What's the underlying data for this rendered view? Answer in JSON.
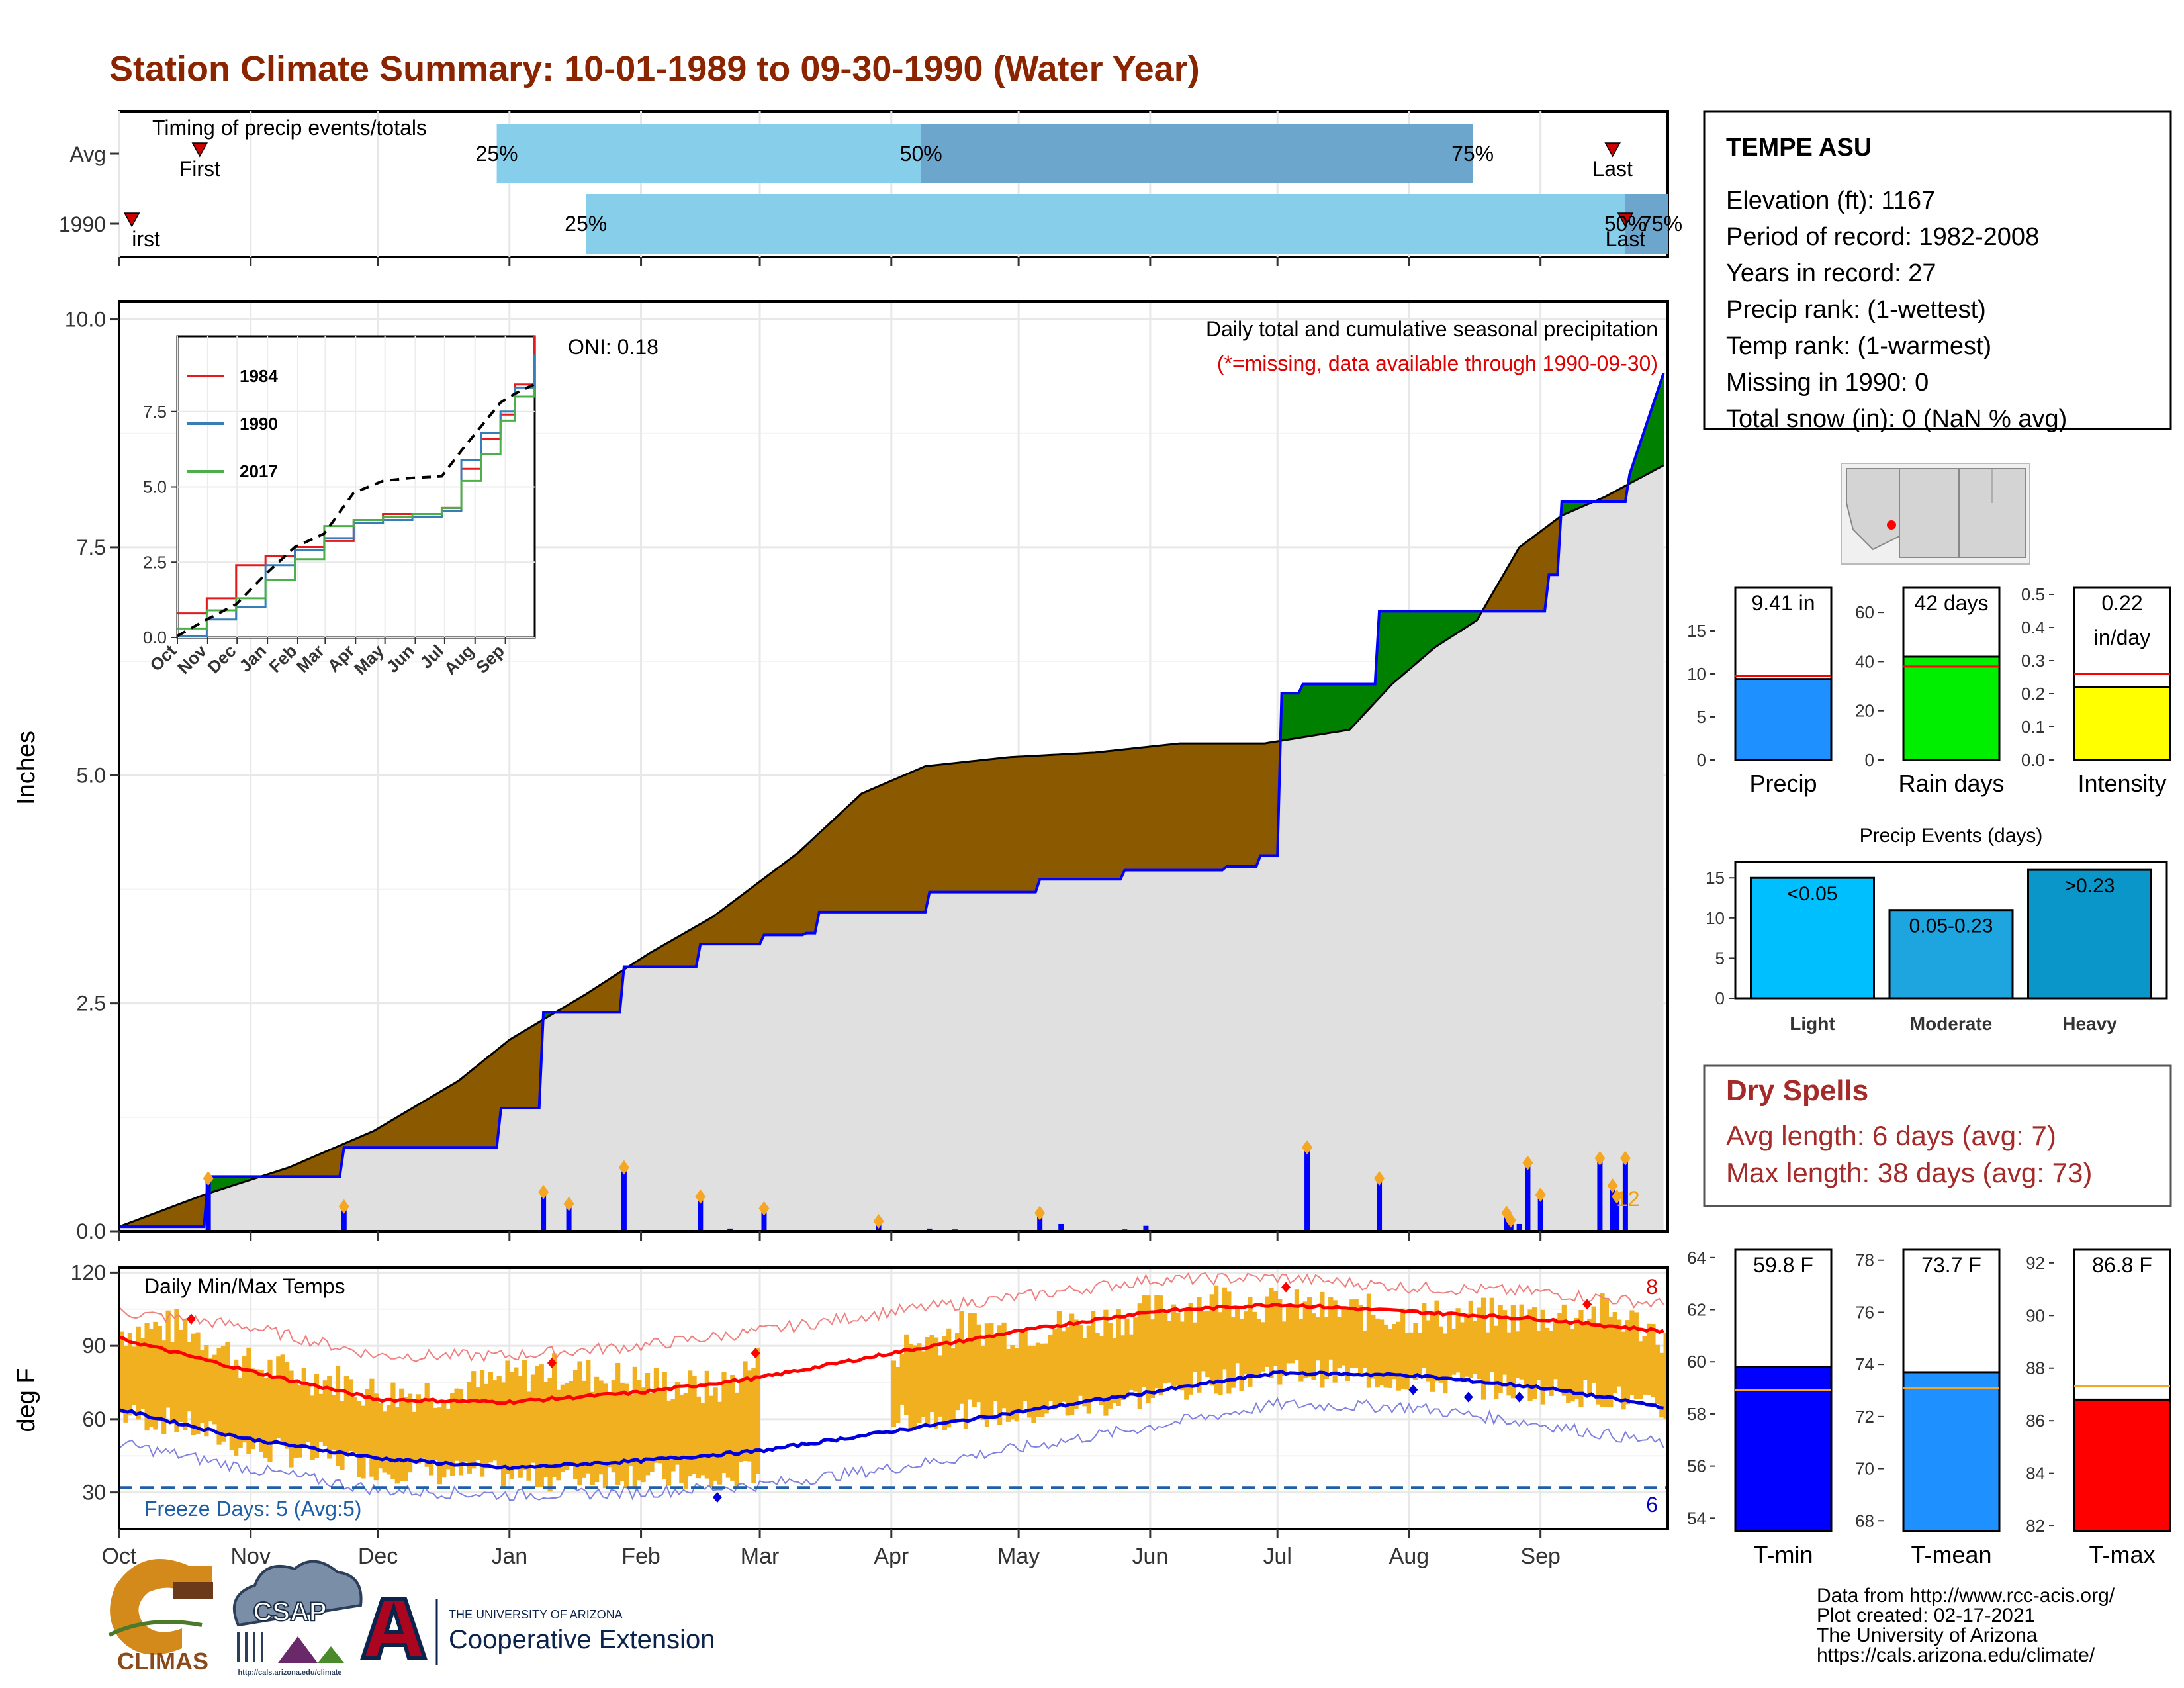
{
  "title": "Station Climate Summary: 10-01-1989 to 09-30-1990 (Water Year)",
  "timing": {
    "label": "Timing of precip events/totals",
    "rows": [
      {
        "name": "Avg",
        "first_day": 19,
        "last_day": 352,
        "p25_day": 89,
        "p50_day": 189,
        "p75_day": 319,
        "first_label": "First",
        "last_label": "Last",
        "p25_label": "25%",
        "p50_label": "50%",
        "p75_label": "75%"
      },
      {
        "name": "1990",
        "first_day": 3,
        "last_day": 355,
        "p25_day": 110,
        "p50_day": 355,
        "p75_day": 392,
        "first_label": "irst",
        "last_label": "Last",
        "p25_label": "25%",
        "p50_label": "50%",
        "p75_label": "75%"
      }
    ]
  },
  "precip_panel": {
    "ylabel": "Inches",
    "header": "Daily total and cumulative seasonal precipitation",
    "missing_note": "(*=missing, data available through 1990-09-30)",
    "oni": "ONI: 0.18",
    "corner_count": "12",
    "y_ticks": [
      "0.0",
      "2.5",
      "5.0",
      "7.5",
      "10.0"
    ]
  },
  "chart_data": [
    {
      "type": "area",
      "name": "cumulative precipitation",
      "xlabel": "",
      "ylabel": "Inches",
      "ylim": [
        0,
        10.2
      ],
      "x_unit": "day of water year (Oct 1 = 0)",
      "avg_cumulative": {
        "days": [
          0,
          20,
          40,
          60,
          80,
          92,
          110,
          125,
          140,
          160,
          175,
          190,
          210,
          230,
          250,
          270,
          290,
          300,
          310,
          320,
          330,
          340,
          350,
          364
        ],
        "values": [
          0.05,
          0.4,
          0.7,
          1.1,
          1.65,
          2.1,
          2.6,
          3.05,
          3.45,
          4.15,
          4.8,
          5.1,
          5.2,
          5.25,
          5.35,
          5.35,
          5.5,
          6.0,
          6.4,
          6.7,
          7.5,
          7.85,
          8.05,
          8.4
        ]
      },
      "observed_cumulative": {
        "days": [
          0,
          20,
          21,
          52,
          53,
          89,
          90,
          99,
          100,
          118,
          119,
          136,
          137,
          151,
          152,
          161,
          162,
          164,
          165,
          190,
          191,
          216,
          217,
          236,
          237,
          260,
          261,
          268,
          269,
          273,
          274,
          278,
          279,
          296,
          297,
          336,
          337,
          339,
          340,
          355,
          356,
          364
        ],
        "values": [
          0.05,
          0.05,
          0.6,
          0.6,
          0.92,
          0.92,
          1.35,
          1.35,
          2.4,
          2.4,
          2.9,
          2.9,
          3.15,
          3.15,
          3.25,
          3.25,
          3.27,
          3.27,
          3.5,
          3.5,
          3.72,
          3.72,
          3.86,
          3.86,
          3.96,
          3.96,
          4.0,
          4.0,
          4.12,
          4.12,
          5.9,
          5.9,
          6.0,
          6.0,
          6.8,
          6.8,
          7.2,
          7.2,
          8.0,
          8.0,
          8.3,
          9.41
        ]
      },
      "daily_events": {
        "days": [
          21,
          53,
          100,
          106,
          119,
          137,
          144,
          152,
          179,
          191,
          197,
          217,
          222,
          237,
          242,
          261,
          280,
          297,
          327,
          328,
          330,
          332,
          335,
          349,
          352,
          353,
          355,
          369
        ],
        "values": [
          0.58,
          0.27,
          0.43,
          0.3,
          0.7,
          0.38,
          0.03,
          0.25,
          0.11,
          0.03,
          0.02,
          0.2,
          0.08,
          0.02,
          0.06,
          0.01,
          0.92,
          0.58,
          0.2,
          0.12,
          0.08,
          0.75,
          0.4,
          0.8,
          0.5,
          0.38,
          0.8,
          0.22
        ]
      }
    },
    {
      "type": "line",
      "name": "inset cumulative precip",
      "x_categories": [
        "Oct",
        "Nov",
        "Dec",
        "Jan",
        "Feb",
        "Mar",
        "Apr",
        "May",
        "Jun",
        "Jul",
        "Aug",
        "Sep"
      ],
      "ylim": [
        0,
        10
      ],
      "y_ticks": [
        "0.0",
        "2.5",
        "5.0",
        "7.5"
      ],
      "series": [
        {
          "name": "1984",
          "color": "#e41a1c",
          "days": [
            0,
            30,
            60,
            90,
            120,
            150,
            180,
            210,
            240,
            270,
            290,
            310,
            330,
            345,
            364
          ],
          "values": [
            0.8,
            1.3,
            2.4,
            2.7,
            3.0,
            3.2,
            3.9,
            4.1,
            4.1,
            4.3,
            5.6,
            6.6,
            7.4,
            8.4,
            10.0
          ]
        },
        {
          "name": "1990",
          "color": "#377eb8",
          "days": [
            0,
            30,
            60,
            90,
            120,
            150,
            180,
            210,
            240,
            270,
            290,
            310,
            330,
            345,
            364
          ],
          "values": [
            0.05,
            0.6,
            1.0,
            2.4,
            2.9,
            3.3,
            3.8,
            3.9,
            4.0,
            4.2,
            5.9,
            6.8,
            7.5,
            8.3,
            9.4
          ]
        },
        {
          "name": "2017",
          "color": "#4daf4a",
          "days": [
            0,
            30,
            60,
            90,
            120,
            150,
            180,
            210,
            240,
            270,
            290,
            310,
            330,
            345,
            364
          ],
          "values": [
            0.3,
            0.9,
            1.3,
            1.9,
            2.6,
            3.7,
            3.9,
            4.0,
            4.1,
            4.3,
            5.2,
            6.1,
            7.2,
            8.0,
            8.3
          ]
        },
        {
          "name": "avg",
          "color": "#000000",
          "days": [
            0,
            30,
            60,
            90,
            120,
            150,
            180,
            210,
            240,
            270,
            290,
            310,
            330,
            345,
            364
          ],
          "values": [
            0.05,
            0.6,
            1.1,
            2.1,
            3.0,
            3.45,
            4.8,
            5.2,
            5.3,
            5.35,
            6.2,
            7.0,
            7.8,
            8.1,
            8.4
          ]
        }
      ]
    },
    {
      "type": "line",
      "name": "daily temps",
      "ylabel": "deg F",
      "ylim": [
        15,
        122
      ],
      "y_ticks": [
        "30",
        "60",
        "90",
        "120"
      ],
      "header": "Daily Min/Max Temps",
      "freeze_label": "Freeze Days: 5 (Avg:5)",
      "count_top": "8",
      "count_bottom": "6",
      "freeze_line": 32,
      "months": [
        "Oct",
        "Nov",
        "Dec",
        "Jan",
        "Feb",
        "Mar",
        "Apr",
        "May",
        "Jun",
        "Jul",
        "Aug",
        "Sep"
      ],
      "avg_max": {
        "days": [
          0,
          30,
          61,
          92,
          123,
          151,
          182,
          212,
          243,
          273,
          304,
          335,
          364
        ],
        "values": [
          93,
          80,
          68,
          67,
          71,
          77,
          87,
          96,
          104,
          107,
          104,
          101,
          96
        ]
      },
      "avg_min": {
        "days": [
          0,
          30,
          61,
          92,
          123,
          151,
          182,
          212,
          243,
          273,
          304,
          335,
          364
        ],
        "values": [
          64,
          52,
          44,
          40,
          43,
          47,
          55,
          63,
          71,
          79,
          78,
          73,
          65
        ]
      },
      "rec_max": {
        "days": [
          0,
          30,
          61,
          92,
          123,
          151,
          182,
          212,
          243,
          273,
          304,
          335,
          364
        ],
        "values": [
          104,
          98,
          86,
          86,
          90,
          96,
          104,
          110,
          117,
          118,
          114,
          112,
          107
        ]
      },
      "rec_min": {
        "days": [
          0,
          30,
          61,
          92,
          123,
          151,
          182,
          212,
          243,
          273,
          304,
          335,
          364
        ],
        "values": [
          50,
          40,
          31,
          29,
          30,
          33,
          40,
          48,
          57,
          66,
          65,
          58,
          50
        ]
      },
      "obs_max": {
        "days": [
          0,
          15,
          30,
          50,
          61,
          80,
          100,
          120,
          140,
          151,
          182,
          200,
          212,
          230,
          243,
          260,
          273,
          290,
          304,
          320,
          335,
          350,
          364
        ],
        "values": [
          96,
          98,
          82,
          76,
          70,
          72,
          80,
          76,
          72,
          84,
          88,
          98,
          96,
          100,
          104,
          110,
          106,
          104,
          102,
          102,
          102,
          104,
          94
        ]
      },
      "obs_min": {
        "days": [
          0,
          15,
          30,
          50,
          61,
          80,
          100,
          120,
          140,
          151,
          182,
          200,
          212,
          230,
          243,
          260,
          273,
          290,
          304,
          320,
          335,
          350,
          364
        ],
        "values": [
          62,
          58,
          48,
          44,
          40,
          38,
          36,
          38,
          34,
          40,
          60,
          62,
          62,
          66,
          70,
          76,
          80,
          78,
          76,
          74,
          72,
          70,
          62
        ]
      },
      "gap_days": [
        151,
        181
      ]
    }
  ],
  "station": {
    "name": "TEMPE ASU",
    "lines": [
      "Elevation (ft): 1167",
      "Period of record: 1982-2008",
      "Years in record: 27",
      "Precip rank:  (1-wettest)",
      "Temp rank:  (1-warmest)",
      "Missing in 1990: 0",
      "Total snow (in): 0 (NaN % avg)"
    ]
  },
  "summary_bars": [
    {
      "name": "Precip",
      "label": "9.41 in",
      "value": 9.41,
      "avg": 9.8,
      "ylim": [
        0,
        20
      ],
      "ticks": [
        0,
        5,
        10,
        15
      ],
      "color": "#1e90ff"
    },
    {
      "name": "Rain days",
      "label": "42 days",
      "value": 42,
      "avg": 38,
      "ylim": [
        0,
        70
      ],
      "ticks": [
        0,
        20,
        40,
        60
      ],
      "color": "#00ee00"
    },
    {
      "name": "Intensity",
      "label_line1": "0.22",
      "label_line2": "in/day",
      "value": 0.22,
      "avg": 0.26,
      "ylim": [
        0,
        0.52
      ],
      "ticks": [
        "0.0",
        "0.1",
        "0.2",
        "0.3",
        "0.4",
        "0.5"
      ],
      "color": "#ffff00"
    }
  ],
  "precip_events": {
    "title": "Precip Events (days)",
    "ylim": [
      0,
      17
    ],
    "ticks": [
      0,
      5,
      10,
      15
    ],
    "bars": [
      {
        "name": "Light",
        "label": "<0.05",
        "value": 15,
        "color": "#00bfff"
      },
      {
        "name": "Moderate",
        "label": "0.05-0.23",
        "value": 11,
        "color": "#1ea5e0"
      },
      {
        "name": "Heavy",
        "label": ">0.23",
        "value": 16,
        "color": "#0a96c8"
      }
    ]
  },
  "dry_spells": {
    "title": "Dry Spells",
    "avg_line": "Avg length: 6 days (avg: 7)",
    "max_line": "Max length: 38 days (avg: 73)"
  },
  "temp_bars": [
    {
      "name": "T-min",
      "label": "59.8 F",
      "value": 59.8,
      "avg": 58.9,
      "ylim": [
        53.5,
        64.3
      ],
      "ticks": [
        54,
        56,
        58,
        60,
        62,
        64
      ],
      "color": "#0000ff"
    },
    {
      "name": "T-mean",
      "label": "73.7 F",
      "value": 73.7,
      "avg": 73.1,
      "ylim": [
        67.6,
        78.4
      ],
      "ticks": [
        68,
        70,
        72,
        74,
        76,
        78
      ],
      "color": "#1e90ff"
    },
    {
      "name": "T-max",
      "label": "86.8 F",
      "value": 86.8,
      "avg": 87.3,
      "ylim": [
        81.8,
        92.5
      ],
      "ticks": [
        82,
        84,
        86,
        88,
        90,
        92
      ],
      "color": "#ff0000"
    }
  ],
  "footer": {
    "credit_lines": [
      "Data from http://www.rcc-acis.org/",
      "Plot created: 02-17-2021",
      "The University of Arizona",
      "https://cals.arizona.edu/climate/"
    ],
    "logos": {
      "climas": "CLIMAS",
      "csap": "CSAP",
      "csap_url": "http://cals.arizona.edu/climate",
      "ua_small": "THE UNIVERSITY OF ARIZONA",
      "ua_big": "Cooperative Extension"
    }
  },
  "colors": {
    "title": "#8b2500",
    "above_avg": "#008000",
    "below_avg": "#8b5a00",
    "obs_fill": "#e0e0e0",
    "obs_line": "#0000ff",
    "temp_bars": "#f0b020",
    "dry_spells": "#a52a2a"
  }
}
